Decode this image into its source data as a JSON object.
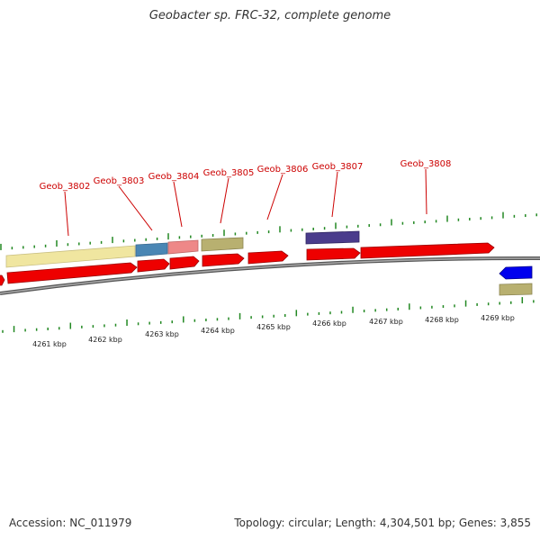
{
  "title": "Geobacter sp. FRC-32, complete genome",
  "footer": {
    "accession": "Accession: NC_011979",
    "summary": "Topology: circular; Length: 4,304,501 bp; Genes: 3,855"
  },
  "colors": {
    "cds_forward": "#ee0000",
    "cds_reverse": "#0000ee",
    "backbone": "#888888",
    "tick": "#228822",
    "label": "#cc0000",
    "feature_yellow": "#f0e6a0",
    "feature_blue": "#4a86b4",
    "feature_pink": "#ee8888",
    "feature_olive": "#b8b070",
    "feature_purple": "#4a3c8c"
  },
  "gene_labels": [
    "Geob_3802",
    "Geob_3803",
    "Geob_3804",
    "Geob_3805",
    "Geob_3806",
    "Geob_3807",
    "Geob_3808"
  ],
  "axis_labels": [
    "4261 kbp",
    "4262 kbp",
    "4263 kbp",
    "4264 kbp",
    "4265 kbp",
    "4266 kbp",
    "4267 kbp",
    "4268 kbp",
    "4269 kbp"
  ]
}
